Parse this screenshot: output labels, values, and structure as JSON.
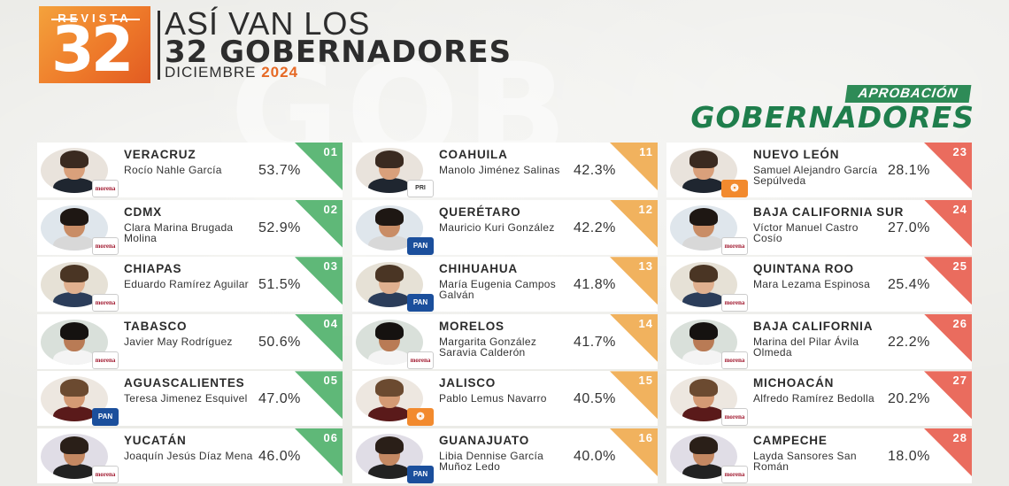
{
  "header": {
    "logo_label": "REVISTA",
    "logo_number": "32",
    "title_line1": "ASÍ VAN LOS",
    "title_line2": "32 GOBERNADORES",
    "date_month": "DICIEMBRE",
    "date_year": "2024"
  },
  "badge": {
    "top": "APROBACIÓN",
    "main": "GOBERNADORES"
  },
  "watermark": "GOB",
  "colors": {
    "green_rank": "#5fb878",
    "yellow_rank": "#f1b25e",
    "red_rank": "#ea6c5e",
    "accent": "#e66a26",
    "brand_green": "#1f7e4c"
  },
  "columns": [
    {
      "items": [
        {
          "rank": "01",
          "state": "VERACRUZ",
          "name": "Rocío Nahle García",
          "pct": "53.7%",
          "party": "morena",
          "party_label": "morena"
        },
        {
          "rank": "02",
          "state": "CDMX",
          "name": "Clara Marina Brugada Molina",
          "pct": "52.9%",
          "party": "morena",
          "party_label": "morena"
        },
        {
          "rank": "03",
          "state": "CHIAPAS",
          "name": "Eduardo Ramírez Aguilar",
          "pct": "51.5%",
          "party": "morena",
          "party_label": "morena"
        },
        {
          "rank": "04",
          "state": "TABASCO",
          "name": "Javier May Rodríguez",
          "pct": "50.6%",
          "party": "morena",
          "party_label": "morena"
        },
        {
          "rank": "05",
          "state": "AGUASCALIENTES",
          "name": "Teresa Jimenez Esquivel",
          "pct": "47.0%",
          "party": "pan",
          "party_label": "PAN"
        },
        {
          "rank": "06",
          "state": "YUCATÁN",
          "name": "Joaquín Jesús Díaz Mena",
          "pct": "46.0%",
          "party": "morena",
          "party_label": "morena"
        }
      ]
    },
    {
      "items": [
        {
          "rank": "11",
          "state": "COAHUILA",
          "name": "Manolo Jiménez Salinas",
          "pct": "42.3%",
          "party": "pri",
          "party_label": "PRI"
        },
        {
          "rank": "12",
          "state": "QUERÉTARO",
          "name": "Mauricio Kuri González",
          "pct": "42.2%",
          "party": "pan",
          "party_label": "PAN"
        },
        {
          "rank": "13",
          "state": "CHIHUAHUA",
          "name": "María Eugenia Campos Galván",
          "pct": "41.8%",
          "party": "pan",
          "party_label": "PAN"
        },
        {
          "rank": "14",
          "state": "MORELOS",
          "name": "Margarita González Saravia Calderón",
          "pct": "41.7%",
          "party": "morena",
          "party_label": "morena"
        },
        {
          "rank": "15",
          "state": "JALISCO",
          "name": "Pablo Lemus Navarro",
          "pct": "40.5%",
          "party": "mc",
          "party_label": ""
        },
        {
          "rank": "16",
          "state": "GUANAJUATO",
          "name": "Libia Dennise García Muñoz Ledo",
          "pct": "40.0%",
          "party": "pan",
          "party_label": "PAN"
        }
      ]
    },
    {
      "items": [
        {
          "rank": "23",
          "state": "NUEVO LEÓN",
          "name": "Samuel Alejandro García Sepúlveda",
          "pct": "28.1%",
          "party": "mc",
          "party_label": ""
        },
        {
          "rank": "24",
          "state": "BAJA CALIFORNIA SUR",
          "name": "Víctor Manuel Castro Cosío",
          "pct": "27.0%",
          "party": "morena",
          "party_label": "morena"
        },
        {
          "rank": "25",
          "state": "QUINTANA ROO",
          "name": "Mara Lezama Espinosa",
          "pct": "25.4%",
          "party": "morena",
          "party_label": "morena"
        },
        {
          "rank": "26",
          "state": "BAJA CALIFORNIA",
          "name": "Marina del Pilar Ávila Olmeda",
          "pct": "22.2%",
          "party": "morena",
          "party_label": "morena"
        },
        {
          "rank": "27",
          "state": "MICHOACÁN",
          "name": "Alfredo Ramírez Bedolla",
          "pct": "20.2%",
          "party": "morena",
          "party_label": "morena"
        },
        {
          "rank": "28",
          "state": "CAMPECHE",
          "name": "Layda Sansores San Román",
          "pct": "18.0%",
          "party": "morena",
          "party_label": "morena"
        }
      ]
    }
  ]
}
